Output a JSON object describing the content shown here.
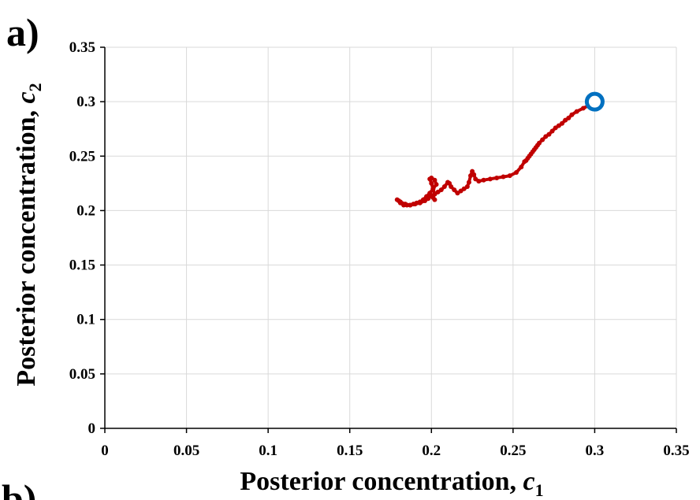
{
  "panel_label": "a)",
  "panel_label_next": "b)",
  "chart_data": {
    "type": "line",
    "xlabel": "Posterior concentration, c1",
    "xlabel_parts": {
      "text": "Posterior concentration, ",
      "var": "c",
      "sub": "1"
    },
    "ylabel": "Posterior concentration, c2",
    "ylabel_parts": {
      "text": "Posterior concentration, ",
      "var": "c",
      "sub": "2"
    },
    "xlim": [
      0,
      0.35
    ],
    "ylim": [
      0,
      0.35
    ],
    "xticks": [
      "0",
      "0.05",
      "0.1",
      "0.15",
      "0.2",
      "0.25",
      "0.3",
      "0.35"
    ],
    "yticks": [
      "0",
      "0.05",
      "0.1",
      "0.15",
      "0.2",
      "0.25",
      "0.3",
      "0.35"
    ],
    "grid": true,
    "colors": {
      "trace": "#c00000",
      "start_marker": "#0070c0"
    },
    "series": [
      {
        "x": [
          0.3,
          0.297,
          0.293,
          0.289,
          0.286,
          0.284,
          0.282,
          0.28,
          0.278,
          0.276,
          0.274,
          0.272,
          0.27,
          0.268,
          0.266,
          0.265,
          0.264,
          0.263,
          0.262,
          0.261,
          0.26,
          0.259,
          0.258,
          0.257,
          0.255,
          0.252,
          0.248,
          0.244,
          0.24,
          0.236,
          0.232,
          0.229,
          0.227,
          0.226,
          0.225,
          0.224,
          0.223,
          0.222,
          0.22,
          0.218,
          0.216,
          0.214,
          0.212,
          0.211,
          0.21,
          0.208,
          0.206,
          0.204,
          0.202,
          0.201,
          0.2,
          0.199,
          0.2,
          0.202,
          0.203,
          0.201,
          0.199,
          0.197,
          0.195,
          0.193,
          0.191,
          0.189,
          0.187,
          0.185,
          0.183,
          0.181,
          0.18,
          0.179,
          0.181,
          0.184,
          0.187,
          0.19,
          0.193,
          0.196,
          0.198,
          0.199,
          0.2,
          0.201,
          0.202
        ],
        "y": [
          0.3,
          0.297,
          0.294,
          0.291,
          0.288,
          0.285,
          0.283,
          0.28,
          0.278,
          0.276,
          0.273,
          0.27,
          0.268,
          0.265,
          0.262,
          0.26,
          0.258,
          0.256,
          0.254,
          0.252,
          0.25,
          0.248,
          0.246,
          0.245,
          0.24,
          0.235,
          0.232,
          0.231,
          0.23,
          0.229,
          0.228,
          0.227,
          0.229,
          0.233,
          0.236,
          0.232,
          0.226,
          0.222,
          0.22,
          0.218,
          0.216,
          0.219,
          0.222,
          0.225,
          0.226,
          0.222,
          0.219,
          0.217,
          0.215,
          0.22,
          0.225,
          0.229,
          0.23,
          0.228,
          0.224,
          0.22,
          0.216,
          0.213,
          0.21,
          0.208,
          0.207,
          0.206,
          0.205,
          0.205,
          0.205,
          0.207,
          0.209,
          0.21,
          0.208,
          0.206,
          0.205,
          0.206,
          0.207,
          0.209,
          0.211,
          0.213,
          0.214,
          0.212,
          0.21
        ]
      }
    ],
    "start_point": {
      "x": 0.3,
      "y": 0.3
    }
  }
}
